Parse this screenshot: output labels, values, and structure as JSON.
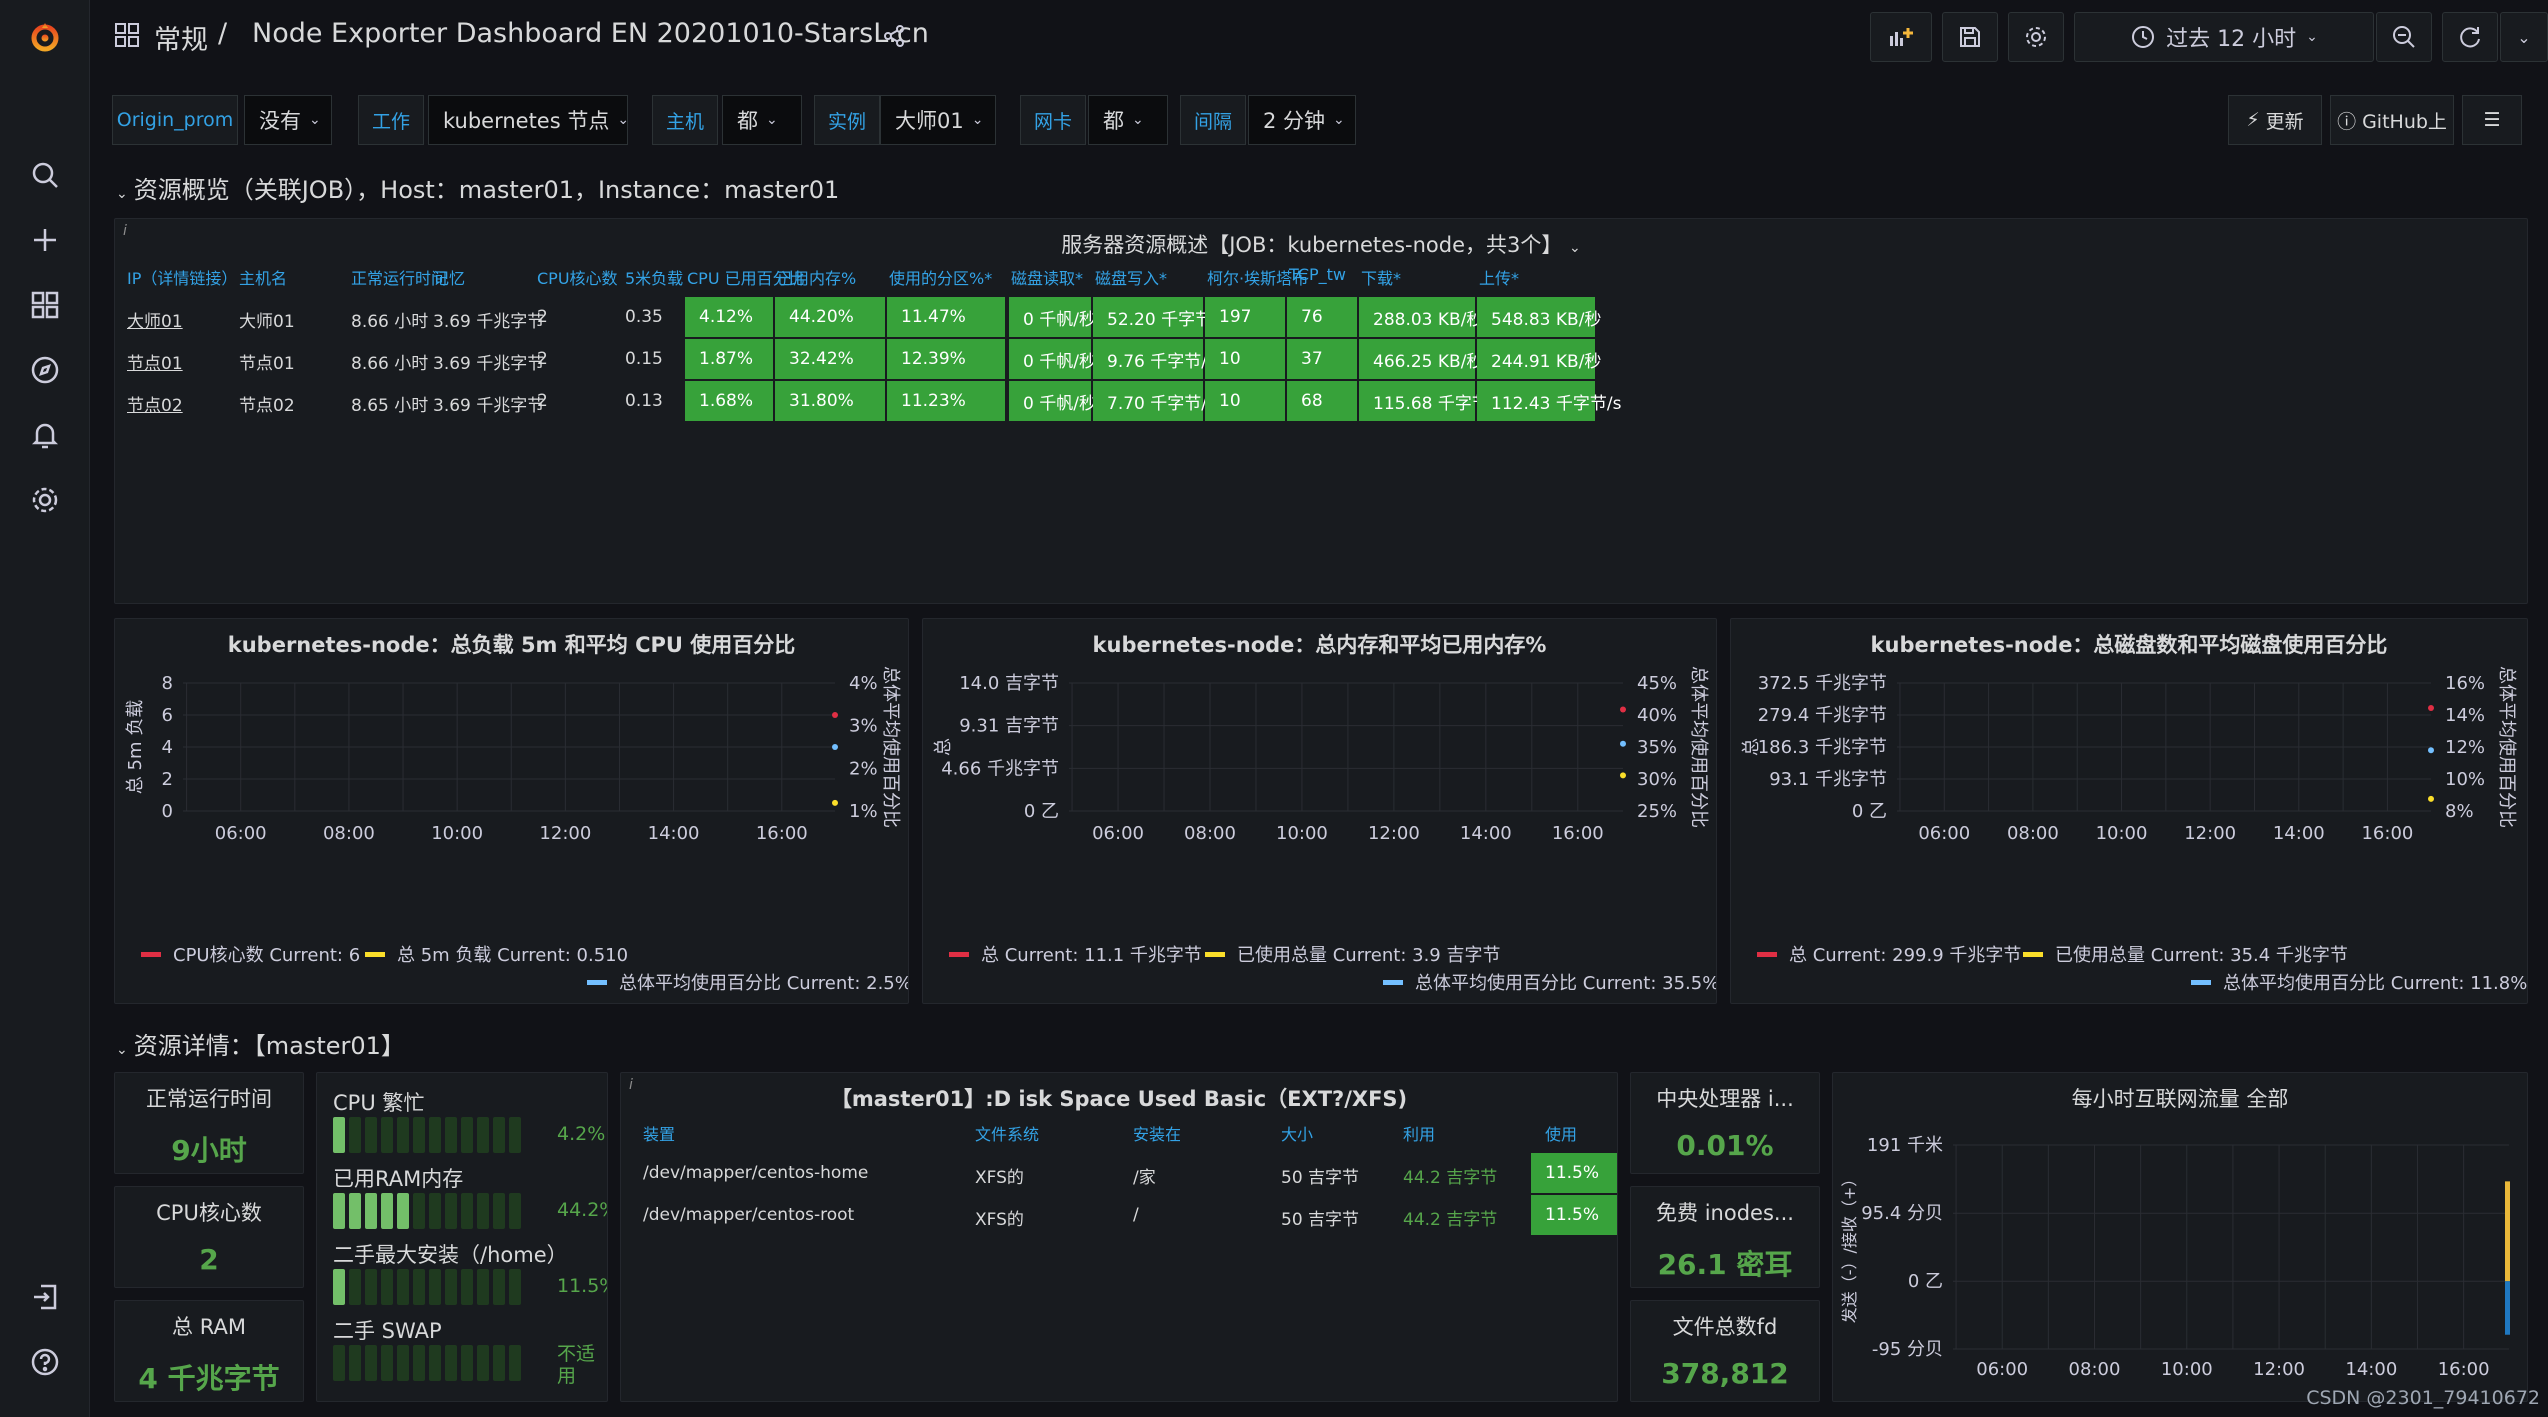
{
  "breadcrumb": {
    "folder": "常规",
    "separator": "/",
    "title": "Node Exporter Dashboard EN 20201010-StarsL.cn"
  },
  "toolbar": {
    "time_range": "过去 12 小时"
  },
  "variables": [
    {
      "label": "Origin_prom",
      "value": "没有"
    },
    {
      "label": "工作",
      "value": "kubernetes 节点"
    },
    {
      "label": "主机",
      "value": "都"
    },
    {
      "label": "实例",
      "value": "大师01"
    },
    {
      "label": "网卡",
      "value": "都"
    },
    {
      "label": "间隔",
      "value": "2 分钟"
    }
  ],
  "links": {
    "update": "更新",
    "github": "GitHub上"
  },
  "row1": {
    "title": "资源概览（关联JOB），Host：master01，Instance：master01"
  },
  "overview": {
    "title": "服务器资源概述【JOB：kubernetes-node，共3个】",
    "columns": [
      "IP（详情链接）",
      "主机名",
      "正常运行时间",
      "记忆",
      "CPU核心数",
      "5米负载",
      "CPU 已用百分比",
      "已用内存%",
      "使用的分区%*",
      "磁盘读取*",
      "磁盘写入*",
      "柯尔·埃斯塔布",
      "TCP_tw",
      "下载*",
      "上传*"
    ],
    "rows": [
      [
        "大师01",
        "大师01",
        "8.66 小时",
        "3.69 千兆字节",
        "2",
        "0.35",
        "4.12%",
        "44.20%",
        "11.47%",
        "0 千帆/秒",
        "52.20 千字节/s",
        "197",
        "76",
        "288.03 KB/秒",
        "548.83 KB/秒"
      ],
      [
        "节点01",
        "节点01",
        "8.66 小时",
        "3.69 千兆字节",
        "2",
        "0.15",
        "1.87%",
        "32.42%",
        "12.39%",
        "0 千帆/秒",
        "9.76 千字节/s",
        "10",
        "37",
        "466.25 KB/秒",
        "244.91 KB/秒"
      ],
      [
        "节点02",
        "节点02",
        "8.65 小时",
        "3.69 千兆字节",
        "2",
        "0.13",
        "1.68%",
        "31.80%",
        "11.23%",
        "0 千帆/秒",
        "7.70 千字节/s",
        "10",
        "68",
        "115.68 千字节/s",
        "112.43 千字节/s"
      ]
    ]
  },
  "charts": {
    "cpu": {
      "title": "kubernetes-node：总负载 5m 和平均 CPU 使用百分比",
      "ylabel_left": "总 5m 负载",
      "ylabel_right": "总体平均使用百分比",
      "legend": [
        {
          "text": "CPU核心数  Current: 6",
          "color": "#e02f44"
        },
        {
          "text": "总 5m 负载  Current: 0.510",
          "color": "#fade2a"
        },
        {
          "text": "总体平均使用百分比  Current: 2.5%",
          "color": "#73bfff"
        }
      ]
    },
    "mem": {
      "title": "kubernetes-node：总内存和平均已用内存%",
      "ylabel_left": "总",
      "ylabel_right": "总体平均使用百分比",
      "legend": [
        {
          "text": "总  Current: 11.1 千兆字节",
          "color": "#e02f44"
        },
        {
          "text": "已使用总量  Current: 3.9 吉字节",
          "color": "#fade2a"
        },
        {
          "text": "总体平均使用百分比  Current: 35.5%",
          "color": "#73bfff"
        }
      ]
    },
    "disk": {
      "title": "kubernetes-node：总磁盘数和平均磁盘使用百分比",
      "ylabel_left": "总",
      "ylabel_right": "总体平均使用百分比",
      "legend": [
        {
          "text": "总  Current: 299.9 千兆字节",
          "color": "#e02f44"
        },
        {
          "text": "已使用总量  Current: 35.4 千兆字节",
          "color": "#fade2a"
        },
        {
          "text": "总体平均使用百分比  Current: 11.8%",
          "color": "#73bfff"
        }
      ]
    },
    "net": {
      "title": "每小时互联网流量 全部",
      "ylabel_left": "发送（-）/接收（+）"
    }
  },
  "chart_data": [
    {
      "type": "line",
      "title": "kubernetes-node：总负载 5m 和平均 CPU 使用百分比",
      "x_ticks": [
        "06:00",
        "08:00",
        "10:00",
        "12:00",
        "14:00",
        "16:00"
      ],
      "y_left_ticks": [
        "0",
        "2",
        "4",
        "6",
        "8"
      ],
      "ylim_left": [
        0,
        8
      ],
      "y_right_ticks": [
        "1%",
        "2%",
        "3%",
        "4%"
      ],
      "ylim_right": [
        1,
        4
      ],
      "series": [
        {
          "name": "CPU核心数",
          "color": "#e02f44",
          "axis": "left",
          "points": [
            [
              "16:59",
              6
            ]
          ]
        },
        {
          "name": "总 5m 负载",
          "color": "#fade2a",
          "axis": "left",
          "points": [
            [
              "16:59",
              0.51
            ]
          ]
        },
        {
          "name": "总体平均使用百分比",
          "color": "#73bfff",
          "axis": "right",
          "points": [
            [
              "16:59",
              2.5
            ]
          ]
        }
      ]
    },
    {
      "type": "line",
      "title": "kubernetes-node：总内存和平均已用内存%",
      "x_ticks": [
        "06:00",
        "08:00",
        "10:00",
        "12:00",
        "14:00",
        "16:00"
      ],
      "y_left_ticks": [
        "0 乙",
        "4.66 千兆字节",
        "9.31 吉字节",
        "14.0 吉字节"
      ],
      "ylim_left": [
        0,
        14.0
      ],
      "y_right_ticks": [
        "25%",
        "30%",
        "35%",
        "40%",
        "45%"
      ],
      "ylim_right": [
        25,
        45
      ],
      "series": [
        {
          "name": "总",
          "color": "#e02f44",
          "axis": "left",
          "points": [
            [
              "16:59",
              11.1
            ]
          ]
        },
        {
          "name": "已使用总量",
          "color": "#fade2a",
          "axis": "left",
          "points": [
            [
              "16:59",
              3.9
            ]
          ]
        },
        {
          "name": "总体平均使用百分比",
          "color": "#73bfff",
          "axis": "right",
          "points": [
            [
              "16:59",
              35.5
            ]
          ]
        }
      ]
    },
    {
      "type": "line",
      "title": "kubernetes-node：总磁盘数和平均磁盘使用百分比",
      "x_ticks": [
        "06:00",
        "08:00",
        "10:00",
        "12:00",
        "14:00",
        "16:00"
      ],
      "y_left_ticks": [
        "0 乙",
        "93.1 千兆字节",
        "186.3 千兆字节",
        "279.4 千兆字节",
        "372.5 千兆字节"
      ],
      "ylim_left": [
        0,
        372.5
      ],
      "y_right_ticks": [
        "8%",
        "10%",
        "12%",
        "14%",
        "16%"
      ],
      "ylim_right": [
        8,
        16
      ],
      "series": [
        {
          "name": "总",
          "color": "#e02f44",
          "axis": "left",
          "points": [
            [
              "16:59",
              299.9
            ]
          ]
        },
        {
          "name": "已使用总量",
          "color": "#fade2a",
          "axis": "left",
          "points": [
            [
              "16:59",
              35.4
            ]
          ]
        },
        {
          "name": "总体平均使用百分比",
          "color": "#73bfff",
          "axis": "right",
          "points": [
            [
              "16:59",
              11.8
            ]
          ]
        }
      ]
    },
    {
      "type": "bar",
      "title": "每小时互联网流量 全部",
      "x_ticks": [
        "06:00",
        "08:00",
        "10:00",
        "12:00",
        "14:00",
        "16:00"
      ],
      "y_left_ticks": [
        "-95 分贝",
        "0 乙",
        "95.4 分贝",
        "191 千米"
      ],
      "ylim_left": [
        -95,
        191
      ],
      "series": [
        {
          "color": "#eab839",
          "points": [
            [
              "16:59",
              140
            ]
          ]
        },
        {
          "color": "#1f78c1",
          "points": [
            [
              "16:59",
              -75
            ]
          ]
        }
      ]
    }
  ],
  "row2": {
    "title": "资源详情：【master01】"
  },
  "stats": {
    "uptime": {
      "title": "正常运行时间",
      "value": "9小时"
    },
    "cores": {
      "title": "CPU核心数",
      "value": "2"
    },
    "ram": {
      "title": "总 RAM",
      "value": "4 千兆字节"
    },
    "cpu_pct": {
      "title": "中央处理器 i...",
      "value": "0.01%"
    },
    "inodes": {
      "title": "免费 inodes...",
      "value": "26.1 密耳"
    },
    "fd": {
      "title": "文件总数fd",
      "value": "378,812"
    }
  },
  "bargauge": [
    {
      "label": "CPU 繁忙",
      "value": "4.2%",
      "fraction": 0.042
    },
    {
      "label": "已用RAM内存",
      "value": "44.2%",
      "fraction": 0.442
    },
    {
      "label": "二手最大安装（/home）",
      "value": "11.5%",
      "fraction": 0.115
    },
    {
      "label": "二手 SWAP",
      "value": "不适用",
      "fraction": 0
    }
  ],
  "disk_table": {
    "title": "【master01】:D isk Space Used Basic（EXT?/XFS)",
    "columns": [
      "装置",
      "文件系统",
      "安装在",
      "大小",
      "利用",
      "使用"
    ],
    "rows": [
      [
        "/dev/mapper/centos-home",
        "XFS的",
        "/家",
        "50 吉字节",
        "44.2 吉字节",
        "11.5%"
      ],
      [
        "/dev/mapper/centos-root",
        "XFS的",
        "/",
        "50 吉字节",
        "44.2 吉字节",
        "11.5%"
      ]
    ]
  },
  "watermark": "CSDN @2301_79410672"
}
